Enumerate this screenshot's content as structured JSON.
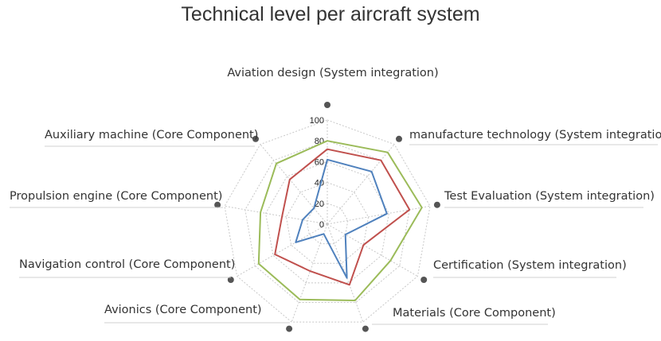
{
  "chart_data": {
    "type": "radar",
    "title": "Technical level per aircraft system",
    "axes": [
      "Aviation design (System integration)",
      "manufacture technology (System integration)",
      "Test Evaluation (System integration)",
      "Certification (System integration)",
      "Materials (Core Component)",
      "Avionics (Core Component)",
      "Navigation control (Core Component)",
      "Propulsion engine (Core Component)",
      "Auxiliary machine (Core Component)"
    ],
    "ticks": [
      "0",
      "20",
      "40",
      "60",
      "80",
      "100"
    ],
    "rlim": [
      0,
      100
    ],
    "grid": true,
    "series": [
      {
        "color": "#4f81bd",
        "values": [
          62,
          66,
          58,
          20,
          55,
          10,
          35,
          24,
          20
        ]
      },
      {
        "color": "#c0504d",
        "values": [
          72,
          80,
          80,
          40,
          62,
          48,
          58,
          44,
          56
        ]
      },
      {
        "color": "#9bbb59",
        "values": [
          80,
          90,
          92,
          70,
          78,
          77,
          76,
          65,
          76
        ]
      }
    ]
  }
}
